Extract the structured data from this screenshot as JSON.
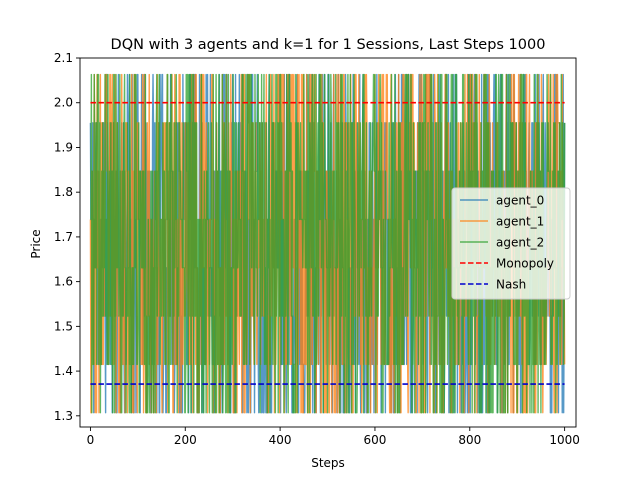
{
  "chart_data": {
    "type": "line",
    "title": "DQN with 3 agents and k=1 for 1 Sessions, Last Steps 1000",
    "xlabel": "Steps",
    "ylabel": "Price",
    "xlim": [
      -22,
      1024
    ],
    "ylim": [
      1.275,
      2.1
    ],
    "xticks": [
      0,
      200,
      400,
      600,
      800,
      1000
    ],
    "yticks": [
      1.3,
      1.4,
      1.5,
      1.6,
      1.7,
      1.8,
      1.9,
      2.0,
      2.1
    ],
    "xtick_labels": [
      "0",
      "200",
      "400",
      "600",
      "800",
      "1000"
    ],
    "ytick_labels": [
      "1.3",
      "1.4",
      "1.5",
      "1.6",
      "1.7",
      "1.8",
      "1.9",
      "2.0",
      "2.1"
    ],
    "price_levels": [
      1.307,
      1.415,
      1.523,
      1.631,
      1.739,
      1.847,
      1.955,
      2.063
    ],
    "num_steps": 1000,
    "series": [
      {
        "name": "agent_0",
        "color": "#1f77b4",
        "style": "solid",
        "alpha": 0.75,
        "seed": 11,
        "start": 1.955,
        "end": 1.955
      },
      {
        "name": "agent_1",
        "color": "#ff7f0e",
        "style": "solid",
        "alpha": 0.75,
        "seed": 23,
        "start": 1.739,
        "end": 1.415
      },
      {
        "name": "agent_2",
        "color": "#2ca02c",
        "style": "solid",
        "alpha": 0.75,
        "seed": 37,
        "start": 1.739,
        "end": 1.955
      },
      {
        "name": "Monopoly",
        "color": "#ff0000",
        "style": "dashed",
        "x": [
          0,
          1000
        ],
        "value": 2.0
      },
      {
        "name": "Nash",
        "color": "#0000cd",
        "style": "dashed",
        "x": [
          0,
          1000
        ],
        "value": 1.371
      }
    ],
    "legend": {
      "position": "right-center",
      "entries": [
        "agent_0",
        "agent_1",
        "agent_2",
        "Monopoly",
        "Nash"
      ]
    }
  }
}
